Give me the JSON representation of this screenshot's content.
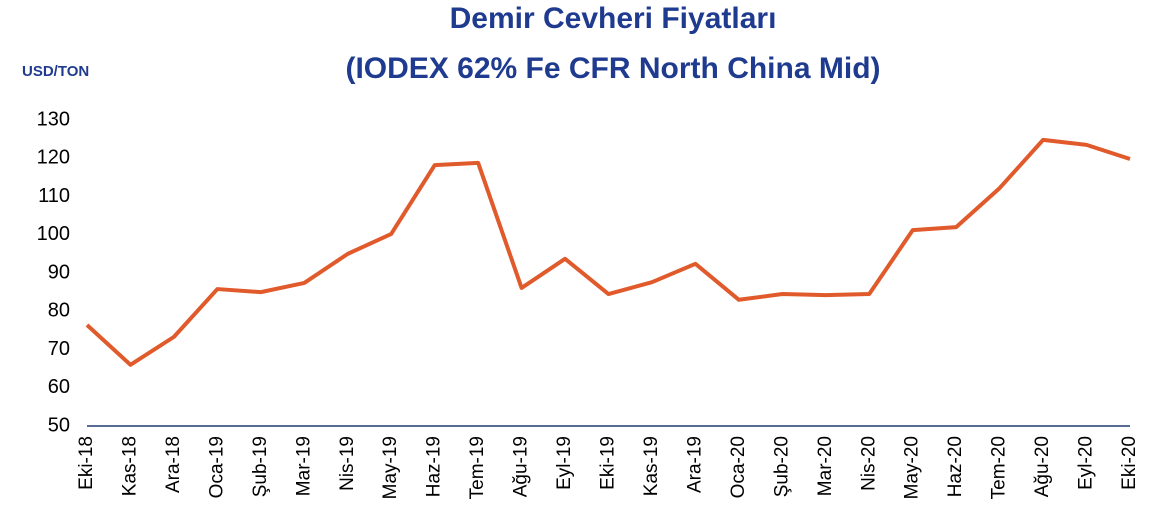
{
  "chart_data": {
    "type": "line",
    "title": "Demir Cevheri Fiyatları",
    "subtitle": "(IODEX 62% Fe CFR North China Mid)",
    "y_axis_label": "USD/TON",
    "categories": [
      "Eki-18",
      "Kas-18",
      "Ara-18",
      "Oca-19",
      "Şub-19",
      "Mar-19",
      "Nis-19",
      "May-19",
      "Haz-19",
      "Tem-19",
      "Ağu-19",
      "Eyl-19",
      "Eki-19",
      "Kas-19",
      "Ara-19",
      "Oca-20",
      "Şub-20",
      "Mar-20",
      "Nis-20",
      "May-20",
      "Haz-20",
      "Tem-20",
      "Ağu-20",
      "Eyl-20",
      "Eki-20"
    ],
    "series": [
      {
        "name": "IODEX 62% Fe",
        "color": "#e05a2b",
        "values": [
          76.4,
          66,
          73.3,
          85.8,
          85,
          87.4,
          95,
          100.2,
          118.2,
          118.8,
          86.1,
          93.7,
          84.5,
          87.6,
          92.4,
          83,
          84.5,
          84.2,
          84.5,
          101.2,
          102,
          112.2,
          124.8,
          123.5,
          119.8
        ]
      }
    ],
    "ylim": [
      50,
      130
    ],
    "yticks": [
      50,
      60,
      70,
      80,
      90,
      100,
      110,
      120,
      130
    ],
    "grid": false
  }
}
